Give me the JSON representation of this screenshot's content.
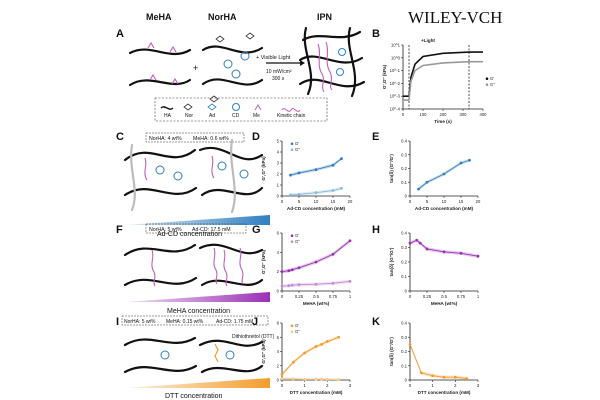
{
  "publisher": "WILEY-VCH",
  "colors": {
    "blue": "#2f7fc1",
    "lightblue": "#9ac3e6",
    "purple": "#9b30b5",
    "lightpurple": "#d7a6e3",
    "orange": "#f39c2d",
    "lightorange": "#f8c98a",
    "magenta": "#c25fb8",
    "grey": "#888888"
  },
  "panelA": {
    "letter": "A",
    "meha": "MeHA",
    "norha": "NorHA",
    "ipn": "IPN",
    "plus": "+",
    "light_label": "+ Visible Light",
    "intensity": "10 mW/cm²",
    "time": "300 s",
    "legend": [
      "HA",
      "Nor",
      "Ad",
      "CD",
      "Me",
      "Kinetic chain"
    ]
  },
  "panelC": {
    "letter": "C",
    "tag_a": "NorHA: 4 wt%",
    "tag_b": "MeHA: 0.6 wt%",
    "gradient_label": "Ad-CD concentration"
  },
  "panelF": {
    "letter": "F",
    "tag_a": "NorHA: 5 wt%",
    "tag_b": "Ad-CD: 17.5 mM",
    "gradient_label": "MeHA concentration"
  },
  "panelI": {
    "letter": "I",
    "tag_a": "NorHA: 5 wt%",
    "tag_b": "MeHA: 0.15 wt%",
    "tag_c": "Ad-CD: 1.75 mM",
    "dtt_tag": "Dithiothreitol (DTT)",
    "gradient_label": "DTT concentration"
  },
  "chart_data": [
    {
      "panel": "B",
      "type": "line",
      "title": "",
      "light_label": "+Light",
      "xlabel": "Time (s)",
      "ylabel": "G',G'' (kPa)",
      "xlim": [
        0,
        400
      ],
      "xticks": [
        0,
        100,
        200,
        300,
        400
      ],
      "ylim": [
        -4,
        1
      ],
      "yticks": [
        "10^1",
        "10^0",
        "10^-1",
        "10^-2",
        "10^-3",
        "10^-4"
      ],
      "markers": [
        30,
        330
      ],
      "series": [
        {
          "name": "G'",
          "color": "#111111",
          "x": [
            0,
            30,
            40,
            60,
            100,
            200,
            330,
            400
          ],
          "y": [
            -3.0,
            -3.0,
            -1.5,
            -0.5,
            0.1,
            0.35,
            0.45,
            0.45
          ]
        },
        {
          "name": "G''",
          "color": "#999999",
          "x": [
            0,
            30,
            40,
            60,
            100,
            200,
            330,
            400
          ],
          "y": [
            -3.3,
            -3.3,
            -1.8,
            -1.0,
            -0.6,
            -0.4,
            -0.3,
            -0.3
          ]
        }
      ]
    },
    {
      "panel": "D",
      "type": "scatter",
      "xlabel": "Ad-CD concentration (mM)",
      "ylabel": "G',G'' (kPa)",
      "xlim": [
        0,
        20
      ],
      "xticks": [
        0,
        5,
        10,
        15,
        20
      ],
      "ylim": [
        0,
        5
      ],
      "yticks": [
        0,
        1,
        2,
        3,
        4,
        5
      ],
      "series": [
        {
          "name": "G'",
          "color": "#2f7fc1",
          "x": [
            2.5,
            5,
            10,
            15,
            17.5
          ],
          "y": [
            1.9,
            2.1,
            2.4,
            2.8,
            3.4
          ]
        },
        {
          "name": "G''",
          "color": "#8ab8de",
          "x": [
            2.5,
            5,
            10,
            15,
            17.5
          ],
          "y": [
            0.1,
            0.15,
            0.3,
            0.5,
            0.7
          ]
        }
      ]
    },
    {
      "panel": "E",
      "type": "scatter",
      "xlabel": "Ad-CD concentration (mM)",
      "ylabel": "tan(δ) (G''/G')",
      "xlim": [
        0,
        20
      ],
      "xticks": [
        0,
        5,
        10,
        15,
        20
      ],
      "ylim": [
        0,
        0.4
      ],
      "yticks": [
        0,
        0.1,
        0.2,
        0.3,
        0.4
      ],
      "series": [
        {
          "name": "tan(δ)",
          "color": "#2f7fc1",
          "x": [
            2.5,
            5,
            10,
            15,
            17.5
          ],
          "y": [
            0.05,
            0.1,
            0.16,
            0.24,
            0.26
          ]
        }
      ]
    },
    {
      "panel": "G",
      "type": "scatter",
      "xlabel": "MeHA (wt%)",
      "ylabel": "G',G'' (kPa)",
      "xlim": [
        0,
        1
      ],
      "xticks": [
        0,
        0.25,
        0.5,
        0.75,
        1.0
      ],
      "ylim": [
        0,
        6
      ],
      "yticks": [
        0,
        2,
        4,
        6
      ],
      "series": [
        {
          "name": "G'",
          "color": "#9b30b5",
          "x": [
            0,
            0.1,
            0.15,
            0.25,
            0.5,
            0.75,
            1.0
          ],
          "y": [
            2.0,
            2.1,
            2.2,
            2.4,
            3.0,
            3.8,
            5.2
          ]
        },
        {
          "name": "G''",
          "color": "#c58ad6",
          "x": [
            0,
            0.1,
            0.15,
            0.25,
            0.5,
            0.75,
            1.0
          ],
          "y": [
            0.5,
            0.55,
            0.6,
            0.65,
            0.7,
            0.8,
            1.0
          ]
        }
      ]
    },
    {
      "panel": "H",
      "type": "scatter",
      "xlabel": "MeHA (wt%)",
      "ylabel": "tan(δ) (G''/G')",
      "xlim": [
        0,
        1
      ],
      "xticks": [
        0,
        0.25,
        0.5,
        0.75,
        1.0
      ],
      "ylim": [
        0,
        0.4
      ],
      "yticks": [
        0,
        0.1,
        0.2,
        0.3,
        0.4
      ],
      "series": [
        {
          "name": "tan(δ)",
          "color": "#9b30b5",
          "x": [
            0,
            0.1,
            0.15,
            0.25,
            0.5,
            0.75,
            1.0
          ],
          "y": [
            0.33,
            0.35,
            0.33,
            0.29,
            0.27,
            0.26,
            0.24
          ]
        }
      ]
    },
    {
      "panel": "J",
      "type": "scatter",
      "xlabel": "DTT concentration (mM)",
      "ylabel": "G',G'' (kPa)",
      "xlim": [
        0,
        3
      ],
      "xticks": [
        0,
        1,
        2,
        3
      ],
      "ylim": [
        0,
        8
      ],
      "yticks": [
        0,
        2,
        4,
        6,
        8
      ],
      "series": [
        {
          "name": "G'",
          "color": "#f39c2d",
          "x": [
            0,
            0.5,
            1.0,
            1.5,
            1.75,
            2.0,
            2.5
          ],
          "y": [
            0.8,
            2.5,
            3.8,
            4.7,
            5.0,
            5.4,
            6.0
          ]
        },
        {
          "name": "G''",
          "color": "#f8c98a",
          "x": [
            0,
            0.5,
            1.0,
            1.5,
            1.75,
            2.0,
            2.5
          ],
          "y": [
            0.2,
            0.15,
            0.1,
            0.1,
            0.1,
            0.08,
            0.05
          ]
        }
      ]
    },
    {
      "panel": "K",
      "type": "scatter",
      "xlabel": "DTT concentration (mM)",
      "ylabel": "tan(δ) (G''/G')",
      "xlim": [
        0,
        3
      ],
      "xticks": [
        0,
        1,
        2,
        3
      ],
      "ylim": [
        0,
        0.4
      ],
      "yticks": [
        0,
        0.1,
        0.2,
        0.3,
        0.4
      ],
      "series": [
        {
          "name": "tan(δ)",
          "color": "#f39c2d",
          "x": [
            0,
            0.5,
            1.0,
            1.5,
            2.0,
            2.5
          ],
          "y": [
            0.25,
            0.05,
            0.03,
            0.02,
            0.02,
            0.01
          ]
        }
      ]
    }
  ]
}
